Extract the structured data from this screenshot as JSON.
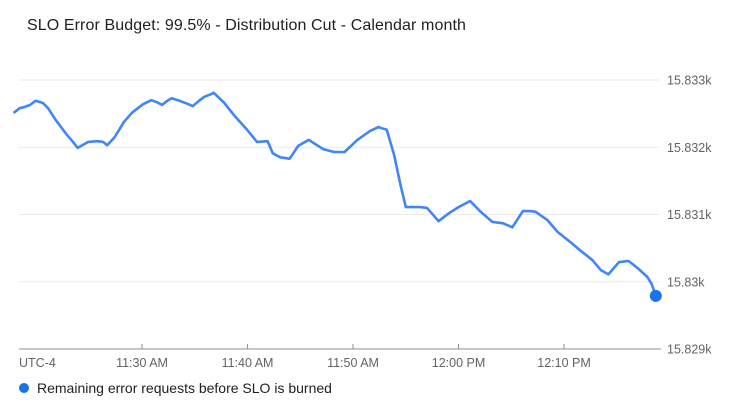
{
  "title": "SLO Error Budget: 99.5% - Distribution Cut - Calendar month",
  "colors": {
    "line": "#4285f4",
    "dot": "#1a73e8",
    "grid": "#e9e9e9",
    "axis_line": "#8f8f8f",
    "axis_text": "#636363",
    "title_text": "#212121",
    "legend_text": "#212121",
    "background": "#ffffff"
  },
  "chart_data": {
    "type": "line",
    "title": "SLO Error Budget: 99.5% - Distribution Cut - Calendar month",
    "grid": "horizontal-only",
    "legend_position": "bottom-left",
    "x_axis": {
      "utc_label": "UTC-4",
      "unit": "minutes after 11:00 AM",
      "tick_labels": [
        "11:30 AM",
        "11:40 AM",
        "11:50 AM",
        "12:00 PM",
        "12:10 PM"
      ],
      "tick_values": [
        30,
        40,
        50,
        60,
        70
      ],
      "domain": [
        18.34,
        79.19
      ]
    },
    "y_axis": {
      "side": "right",
      "tick_labels": [
        "15.833k",
        "15.832k",
        "15.831k",
        "15.83k",
        "15.829k"
      ],
      "tick_values": [
        15833,
        15832,
        15831,
        15830,
        15829
      ],
      "domain": [
        15829,
        15833
      ]
    },
    "series": [
      {
        "name": "Remaining error requests before SLO is burned",
        "color": "#4285f4",
        "endpoint_dot_color": "#1a73e8",
        "last_value": 15829.79,
        "points": [
          [
            17.9,
            15832.52
          ],
          [
            18.4,
            15832.58
          ],
          [
            18.9,
            15832.6
          ],
          [
            19.4,
            15832.63
          ],
          [
            19.9,
            15832.69
          ],
          [
            20.6,
            15832.66
          ],
          [
            21.1,
            15832.58
          ],
          [
            21.8,
            15832.41
          ],
          [
            22.8,
            15832.2
          ],
          [
            23.4,
            15832.09
          ],
          [
            23.9,
            15831.99
          ],
          [
            24.9,
            15832.08
          ],
          [
            25.8,
            15832.09
          ],
          [
            26.3,
            15832.08
          ],
          [
            26.7,
            15832.03
          ],
          [
            27.4,
            15832.15
          ],
          [
            28.3,
            15832.38
          ],
          [
            29.1,
            15832.52
          ],
          [
            30.1,
            15832.64
          ],
          [
            30.9,
            15832.7
          ],
          [
            31.4,
            15832.67
          ],
          [
            31.9,
            15832.63
          ],
          [
            32.4,
            15832.69
          ],
          [
            32.8,
            15832.73
          ],
          [
            33.4,
            15832.7
          ],
          [
            33.9,
            15832.67
          ],
          [
            34.4,
            15832.64
          ],
          [
            34.8,
            15832.61
          ],
          [
            35.4,
            15832.69
          ],
          [
            35.9,
            15832.75
          ],
          [
            36.4,
            15832.78
          ],
          [
            36.8,
            15832.81
          ],
          [
            37.8,
            15832.66
          ],
          [
            38.8,
            15832.46
          ],
          [
            39.9,
            15832.27
          ],
          [
            40.9,
            15832.08
          ],
          [
            41.9,
            15832.09
          ],
          [
            42.4,
            15831.91
          ],
          [
            43.1,
            15831.85
          ],
          [
            44.0,
            15831.83
          ],
          [
            44.8,
            15832.02
          ],
          [
            45.8,
            15832.11
          ],
          [
            47.2,
            15831.97
          ],
          [
            48.2,
            15831.93
          ],
          [
            49.2,
            15831.93
          ],
          [
            50.4,
            15832.11
          ],
          [
            51.6,
            15832.24
          ],
          [
            52.4,
            15832.3
          ],
          [
            53.2,
            15832.26
          ],
          [
            53.9,
            15831.88
          ],
          [
            54.5,
            15831.44
          ],
          [
            55.0,
            15831.11
          ],
          [
            56.3,
            15831.11
          ],
          [
            57.0,
            15831.1
          ],
          [
            57.5,
            15831.01
          ],
          [
            58.1,
            15830.9
          ],
          [
            59.1,
            15831.02
          ],
          [
            60.0,
            15831.11
          ],
          [
            61.1,
            15831.2
          ],
          [
            62.1,
            15831.04
          ],
          [
            63.2,
            15830.89
          ],
          [
            64.2,
            15830.87
          ],
          [
            65.1,
            15830.81
          ],
          [
            66.1,
            15831.05
          ],
          [
            66.8,
            15831.05
          ],
          [
            67.3,
            15831.04
          ],
          [
            68.4,
            15830.92
          ],
          [
            69.4,
            15830.74
          ],
          [
            70.6,
            15830.59
          ],
          [
            71.5,
            15830.47
          ],
          [
            72.7,
            15830.32
          ],
          [
            73.5,
            15830.17
          ],
          [
            74.2,
            15830.11
          ],
          [
            74.7,
            15830.2
          ],
          [
            75.2,
            15830.29
          ],
          [
            76.1,
            15830.31
          ],
          [
            77.0,
            15830.2
          ],
          [
            77.9,
            15830.07
          ],
          [
            78.3,
            15829.97
          ],
          [
            78.7,
            15829.79
          ]
        ]
      }
    ]
  },
  "legend": {
    "label": "Remaining error requests before SLO is burned"
  }
}
